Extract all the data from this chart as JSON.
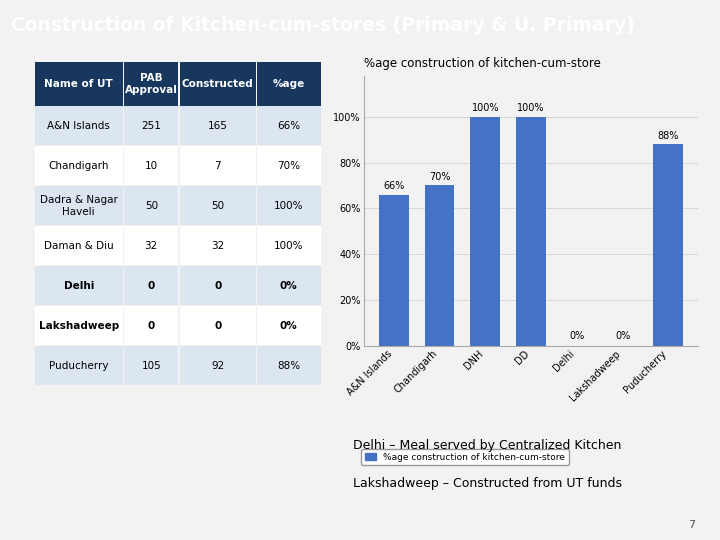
{
  "title": "Construction of Kitchen-cum-stores (Primary & U. Primary)",
  "title_bg": "#5b9bd5",
  "title_color": "#ffffff",
  "table_headers": [
    "Name of UT",
    "PAB\nApproval",
    "Constructed",
    "%age"
  ],
  "table_rows": [
    [
      "A&N Islands",
      "251",
      "165",
      "66%"
    ],
    [
      "Chandigarh",
      "10",
      "7",
      "70%"
    ],
    [
      "Dadra & Nagar\nHaveli",
      "50",
      "50",
      "100%"
    ],
    [
      "Daman & Diu",
      "32",
      "32",
      "100%"
    ],
    [
      "Delhi",
      "0",
      "0",
      "0%"
    ],
    [
      "Lakshadweep",
      "0",
      "0",
      "0%"
    ],
    [
      "Puducherry",
      "105",
      "92",
      "88%"
    ]
  ],
  "header_bg": "#17375e",
  "header_color": "#ffffff",
  "row_bg_even": "#dce6f1",
  "row_bg_odd": "#ffffff",
  "bold_rows": [
    4,
    5
  ],
  "chart_title": "%age construction of kitchen-cum-store",
  "bar_categories": [
    "A&N Islands",
    "Chandigarh",
    "DNH",
    "DD",
    "Delhi",
    "Lakshadweep",
    "Puducherry"
  ],
  "bar_values": [
    66,
    70,
    100,
    100,
    0,
    0,
    88
  ],
  "bar_labels": [
    "66%",
    "70%",
    "100%",
    "100%",
    "0%",
    "0%",
    "88%"
  ],
  "bar_color": "#4472c4",
  "legend_label": "%age construction of kitchen-cum-store",
  "note1": "Delhi – Meal served by Centralized Kitchen",
  "note2": "Lakshadweep – Constructed from UT funds",
  "page_num": "7",
  "bg_color": "#f2f2f2"
}
